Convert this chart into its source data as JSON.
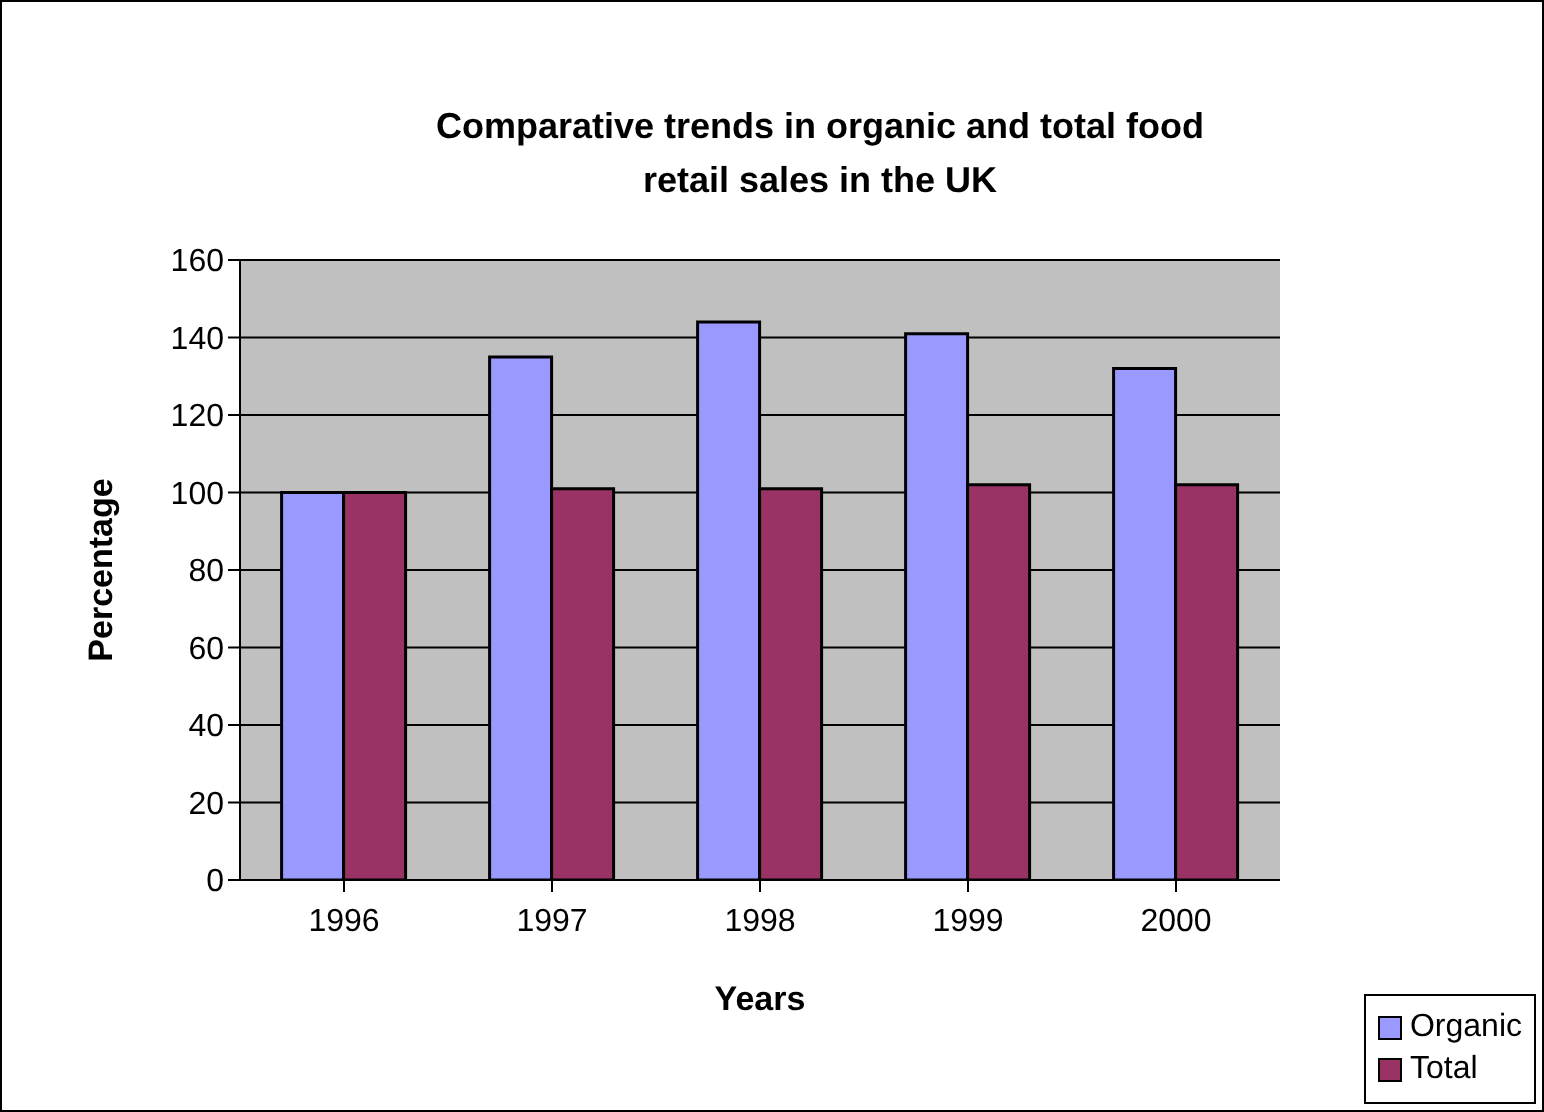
{
  "chart_data": {
    "type": "bar",
    "title": "Comparative trends in organic and total food retail sales in the UK",
    "xlabel": "Years",
    "ylabel": "Percentage",
    "categories": [
      "1996",
      "1997",
      "1998",
      "1999",
      "2000"
    ],
    "series": [
      {
        "name": "Organic",
        "color": "#9999ff",
        "values": [
          100,
          135,
          144,
          141,
          132
        ]
      },
      {
        "name": "Total",
        "color": "#993366",
        "values": [
          100,
          101,
          101,
          102,
          102
        ]
      }
    ],
    "ylim": [
      0,
      160
    ],
    "yticks": [
      0,
      20,
      40,
      60,
      80,
      100,
      120,
      140,
      160
    ],
    "grid": "y",
    "legend": "bottom right"
  }
}
